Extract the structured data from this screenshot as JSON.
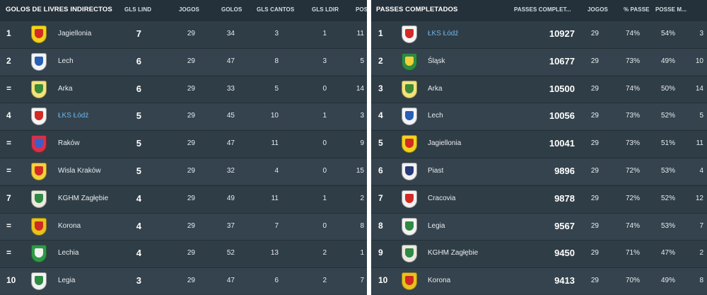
{
  "left": {
    "title": "GOLOS DE LIVRES INDIRECTOS",
    "headers": {
      "gls_lind": "GLS LIND",
      "jogos": "JOGOS",
      "golos": "GOLOS",
      "gls_cantos": "GLS CANTOS",
      "gls_ldir": "GLS LDIR",
      "pos": "POS"
    },
    "rows": [
      {
        "pos": "1",
        "team": "Jagiellonia",
        "highlight": false,
        "main": "7",
        "jogos": "29",
        "golos": "34",
        "cantos": "3",
        "ldir": "1",
        "extra": "11",
        "crest": {
          "icon": "jagiellonia-crest-icon",
          "bg": "#f2d21c",
          "fg": "#d42a24"
        }
      },
      {
        "pos": "2",
        "team": "Lech",
        "highlight": false,
        "main": "6",
        "jogos": "29",
        "golos": "47",
        "cantos": "8",
        "ldir": "3",
        "extra": "5",
        "crest": {
          "icon": "lech-crest-icon",
          "bg": "#f2f4f7",
          "fg": "#2b5fb5"
        }
      },
      {
        "pos": "=",
        "team": "Arka",
        "highlight": false,
        "main": "6",
        "jogos": "29",
        "golos": "33",
        "cantos": "5",
        "ldir": "0",
        "extra": "14",
        "crest": {
          "icon": "arka-crest-icon",
          "bg": "#f4e27a",
          "fg": "#3a8a3a"
        }
      },
      {
        "pos": "4",
        "team": "ŁKS Łódź",
        "highlight": true,
        "main": "5",
        "jogos": "29",
        "golos": "45",
        "cantos": "10",
        "ldir": "1",
        "extra": "3",
        "crest": {
          "icon": "lks-lodz-crest-icon",
          "bg": "#f5f5f5",
          "fg": "#d42a24"
        }
      },
      {
        "pos": "=",
        "team": "Raków",
        "highlight": false,
        "main": "5",
        "jogos": "29",
        "golos": "47",
        "cantos": "11",
        "ldir": "0",
        "extra": "9",
        "crest": {
          "icon": "rakow-crest-icon",
          "bg": "#d83048",
          "fg": "#3b5fc8"
        }
      },
      {
        "pos": "=",
        "team": "Wisla Kraków",
        "highlight": false,
        "main": "5",
        "jogos": "29",
        "golos": "32",
        "cantos": "4",
        "ldir": "0",
        "extra": "15",
        "crest": {
          "icon": "wisla-krakow-crest-icon",
          "bg": "#f3d23a",
          "fg": "#d42a24"
        }
      },
      {
        "pos": "7",
        "team": "KGHM Zagłębie",
        "highlight": false,
        "main": "4",
        "jogos": "29",
        "golos": "49",
        "cantos": "11",
        "ldir": "1",
        "extra": "2",
        "crest": {
          "icon": "zaglebie-crest-icon",
          "bg": "#ece9df",
          "fg": "#2f8a44"
        }
      },
      {
        "pos": "=",
        "team": "Korona",
        "highlight": false,
        "main": "4",
        "jogos": "29",
        "golos": "37",
        "cantos": "7",
        "ldir": "0",
        "extra": "8",
        "crest": {
          "icon": "korona-crest-icon",
          "bg": "#e8c21e",
          "fg": "#cf2a22"
        }
      },
      {
        "pos": "=",
        "team": "Lechia",
        "highlight": false,
        "main": "4",
        "jogos": "29",
        "golos": "52",
        "cantos": "13",
        "ldir": "2",
        "extra": "1",
        "crest": {
          "icon": "lechia-crest-icon",
          "bg": "#2f9a46",
          "fg": "#f2f2f2"
        }
      },
      {
        "pos": "10",
        "team": "Legia",
        "highlight": false,
        "main": "3",
        "jogos": "29",
        "golos": "47",
        "cantos": "6",
        "ldir": "2",
        "extra": "7",
        "crest": {
          "icon": "legia-crest-icon",
          "bg": "#f2f2f2",
          "fg": "#2f8a44"
        }
      }
    ]
  },
  "right": {
    "title": "PASSES COMPLETADOS",
    "headers": {
      "passes": "PASSES COMPLET...",
      "jogos": "JOGOS",
      "pct": "% PASSE",
      "posse": "POSSE M..."
    },
    "rows": [
      {
        "pos": "1",
        "team": "ŁKS Łódź",
        "highlight": true,
        "main": "10927",
        "jogos": "29",
        "pct": "74%",
        "posse": "54%",
        "extra": "3",
        "crest": {
          "icon": "lks-lodz-crest-icon",
          "bg": "#f5f5f5",
          "fg": "#d42a24"
        }
      },
      {
        "pos": "2",
        "team": "Śląsk",
        "highlight": false,
        "main": "10677",
        "jogos": "29",
        "pct": "73%",
        "posse": "49%",
        "extra": "10",
        "crest": {
          "icon": "slask-crest-icon",
          "bg": "#2f8a44",
          "fg": "#f0d23a"
        }
      },
      {
        "pos": "3",
        "team": "Arka",
        "highlight": false,
        "main": "10500",
        "jogos": "29",
        "pct": "74%",
        "posse": "50%",
        "extra": "14",
        "crest": {
          "icon": "arka-crest-icon",
          "bg": "#f4e27a",
          "fg": "#3a8a3a"
        }
      },
      {
        "pos": "4",
        "team": "Lech",
        "highlight": false,
        "main": "10056",
        "jogos": "29",
        "pct": "73%",
        "posse": "52%",
        "extra": "5",
        "crest": {
          "icon": "lech-crest-icon",
          "bg": "#f2f4f7",
          "fg": "#2b5fb5"
        }
      },
      {
        "pos": "5",
        "team": "Jagiellonia",
        "highlight": false,
        "main": "10041",
        "jogos": "29",
        "pct": "73%",
        "posse": "51%",
        "extra": "11",
        "crest": {
          "icon": "jagiellonia-crest-icon",
          "bg": "#f2d21c",
          "fg": "#d42a24"
        }
      },
      {
        "pos": "6",
        "team": "Piast",
        "highlight": false,
        "main": "9896",
        "jogos": "29",
        "pct": "72%",
        "posse": "53%",
        "extra": "4",
        "crest": {
          "icon": "piast-crest-icon",
          "bg": "#f2f2f2",
          "fg": "#2a3a7a"
        }
      },
      {
        "pos": "7",
        "team": "Cracovia",
        "highlight": false,
        "main": "9878",
        "jogos": "29",
        "pct": "72%",
        "posse": "52%",
        "extra": "12",
        "crest": {
          "icon": "cracovia-crest-icon",
          "bg": "#f2f2f2",
          "fg": "#d42a24"
        }
      },
      {
        "pos": "8",
        "team": "Legia",
        "highlight": false,
        "main": "9567",
        "jogos": "29",
        "pct": "74%",
        "posse": "53%",
        "extra": "7",
        "crest": {
          "icon": "legia-crest-icon",
          "bg": "#f2f2f2",
          "fg": "#2f8a44"
        }
      },
      {
        "pos": "9",
        "team": "KGHM Zagłębie",
        "highlight": false,
        "main": "9450",
        "jogos": "29",
        "pct": "71%",
        "posse": "47%",
        "extra": "2",
        "crest": {
          "icon": "zaglebie-crest-icon",
          "bg": "#ece9df",
          "fg": "#2f8a44"
        }
      },
      {
        "pos": "10",
        "team": "Korona",
        "highlight": false,
        "main": "9413",
        "jogos": "29",
        "pct": "70%",
        "posse": "49%",
        "extra": "8",
        "crest": {
          "icon": "korona-crest-icon",
          "bg": "#e8c21e",
          "fg": "#cf2a22"
        }
      }
    ]
  }
}
